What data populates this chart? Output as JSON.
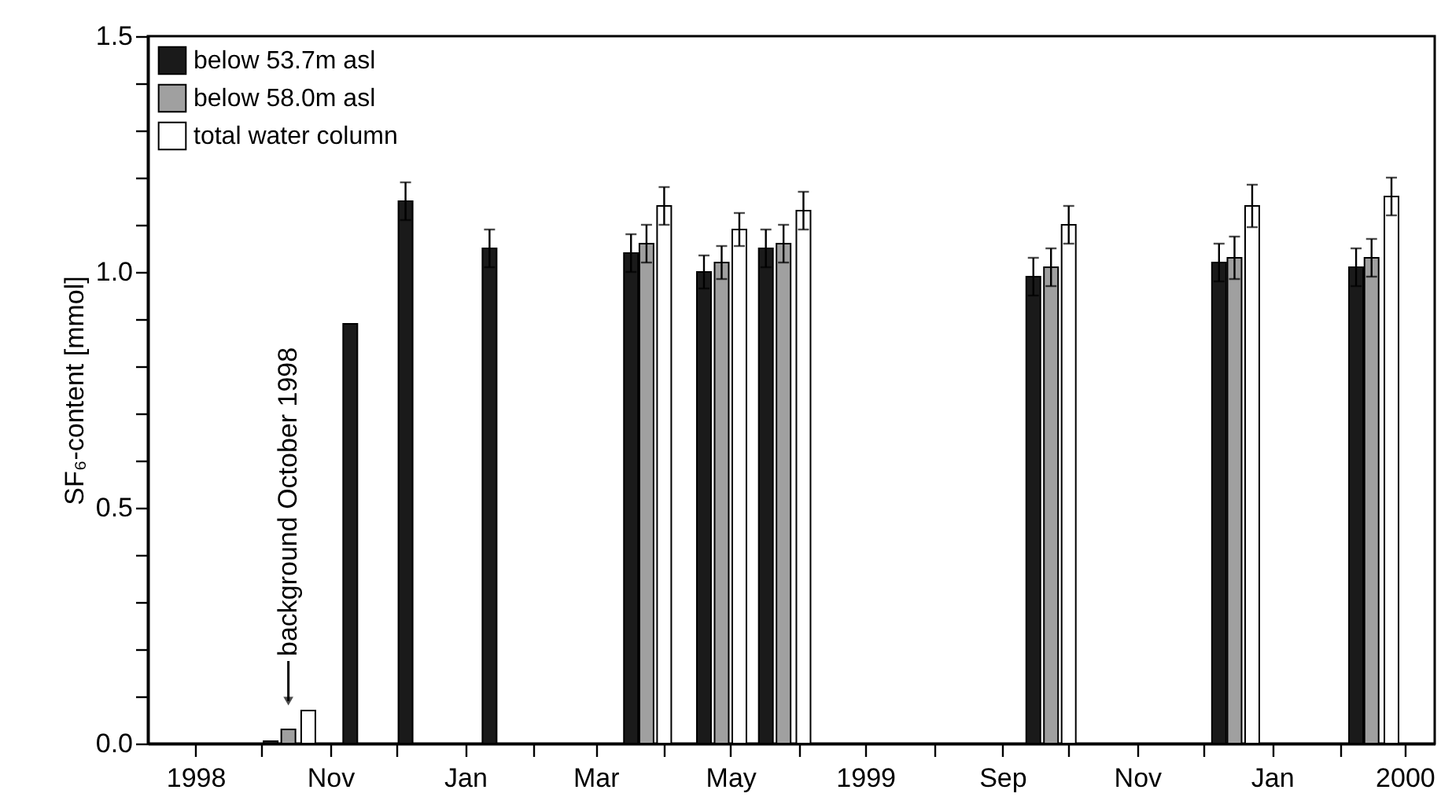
{
  "chart_data": {
    "type": "bar",
    "ylabel": "SF₆-content [mmol]",
    "xlim": [
      "1998-08-14",
      "2000-03-11"
    ],
    "ylim": [
      0,
      1.5
    ],
    "xticks": [
      {
        "value": "1998-09-01",
        "label": "1998"
      },
      {
        "value": "1998-10-01",
        "label": null
      },
      {
        "value": "1998-11-01",
        "label": "Nov"
      },
      {
        "value": "1998-12-01",
        "label": null
      },
      {
        "value": "1999-01-01",
        "label": "Jan"
      },
      {
        "value": "1999-02-01",
        "label": null
      },
      {
        "value": "1999-03-01",
        "label": "Mar"
      },
      {
        "value": "1999-04-01",
        "label": null
      },
      {
        "value": "1999-05-01",
        "label": "May"
      },
      {
        "value": "1999-06-01",
        "label": null
      },
      {
        "value": "1999-07-01",
        "label": "1999"
      },
      {
        "value": "1999-08-01",
        "label": null
      },
      {
        "value": "1999-09-01",
        "label": "Sep"
      },
      {
        "value": "1999-10-01",
        "label": null
      },
      {
        "value": "1999-11-01",
        "label": "Nov"
      },
      {
        "value": "1999-12-01",
        "label": null
      },
      {
        "value": "2000-01-01",
        "label": "Jan"
      },
      {
        "value": "2000-02-01",
        "label": null
      },
      {
        "value": "2000-03-01",
        "label": "2000"
      }
    ],
    "yticks": [
      {
        "value": 0,
        "label": "0.0"
      },
      {
        "value": 0.1,
        "label": null
      },
      {
        "value": 0.2,
        "label": null
      },
      {
        "value": 0.3,
        "label": null
      },
      {
        "value": 0.4,
        "label": null
      },
      {
        "value": 0.5,
        "label": "0.5"
      },
      {
        "value": 0.6,
        "label": null
      },
      {
        "value": 0.7,
        "label": null
      },
      {
        "value": 0.8,
        "label": null
      },
      {
        "value": 0.9,
        "label": null
      },
      {
        "value": 1,
        "label": "1.0"
      },
      {
        "value": 1.1,
        "label": null
      },
      {
        "value": 1.2,
        "label": null
      },
      {
        "value": 1.3,
        "label": null
      },
      {
        "value": 1.4,
        "label": null
      },
      {
        "value": 1.5,
        "label": "1.5"
      }
    ],
    "legend": "top left",
    "series": [
      {
        "name": "below 53.7m asl",
        "color": "#1a1a1a",
        "x": [
          "1998-10-05",
          "1998-11-10",
          "1998-12-05",
          "1999-01-12",
          "1999-03-17",
          "1999-04-19",
          "1999-05-17",
          "1999-09-15",
          "1999-12-08",
          "2000-02-08"
        ],
        "values": [
          0.005,
          0.89,
          1.15,
          1.05,
          1.04,
          1.0,
          1.05,
          0.99,
          1.02,
          1.01
        ],
        "errors": [
          null,
          null,
          0.04,
          0.04,
          0.04,
          0.035,
          0.04,
          0.04,
          0.04,
          0.04
        ]
      },
      {
        "name": "below 58.0m asl",
        "color": "#a0a0a0",
        "x": [
          "1998-10-13",
          "1999-03-24",
          "1999-04-27",
          "1999-05-25",
          "1999-09-23",
          "1999-12-15",
          "2000-02-15"
        ],
        "values": [
          0.03,
          1.06,
          1.02,
          1.06,
          1.01,
          1.03,
          1.03
        ],
        "errors": [
          null,
          0.04,
          0.035,
          0.04,
          0.04,
          0.045,
          0.04
        ]
      },
      {
        "name": "total water column",
        "color": "#ffffff",
        "x": [
          "1998-10-22",
          "1999-04-01",
          "1999-05-05",
          "1999-06-03",
          "1999-10-01",
          "1999-12-23",
          "2000-02-24"
        ],
        "values": [
          0.07,
          1.14,
          1.09,
          1.13,
          1.1,
          1.14,
          1.16
        ],
        "errors": [
          null,
          0.04,
          0.035,
          0.04,
          0.04,
          0.045,
          0.04
        ]
      }
    ],
    "annotations": [
      {
        "text": "background October 1998",
        "x": "1998-10-13",
        "y": 0.03
      }
    ]
  }
}
